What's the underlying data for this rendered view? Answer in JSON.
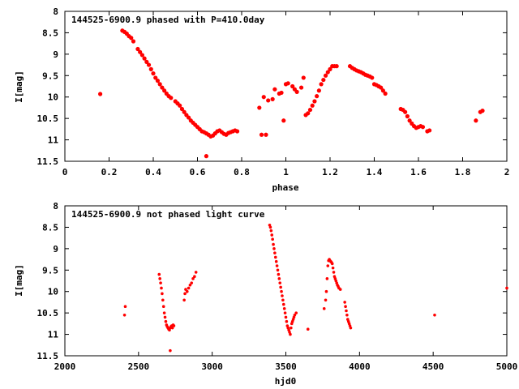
{
  "chart_data": [
    {
      "type": "scatter",
      "title": "144525-6900.9 phased with P=410.0day",
      "xlabel": "phase",
      "ylabel": "I[mag]",
      "xlim": [
        0,
        2
      ],
      "ylim": [
        11.5,
        8
      ],
      "y_inverted": true,
      "grid": false,
      "marker_color": "#ff0000",
      "x_ticks": [
        "0",
        "0.2",
        "0.4",
        "0.6",
        "0.8",
        "1",
        "1.2",
        "1.4",
        "1.6",
        "1.8",
        "2"
      ],
      "y_ticks": [
        "8",
        "8.5",
        "9",
        "9.5",
        "10",
        "10.5",
        "11",
        "11.5"
      ],
      "series": [
        {
          "x": [
            0.16,
            0.26,
            0.27,
            0.28,
            0.29,
            0.3,
            0.31,
            0.33,
            0.34,
            0.35,
            0.36,
            0.37,
            0.38,
            0.39,
            0.4,
            0.41,
            0.42,
            0.43,
            0.44,
            0.45,
            0.46,
            0.47,
            0.48,
            0.5,
            0.51,
            0.52,
            0.53,
            0.54,
            0.55,
            0.56,
            0.57,
            0.58,
            0.59,
            0.6,
            0.61,
            0.62,
            0.63,
            0.64,
            0.65,
            0.66,
            0.67,
            0.68,
            0.69,
            0.7,
            0.71,
            0.72,
            0.73,
            0.74,
            0.75,
            0.76,
            0.77,
            0.78,
            0.64,
            0.88,
            0.89,
            0.9,
            0.91,
            0.92,
            0.94,
            0.95,
            0.97,
            0.98,
            0.99,
            1.0,
            1.01,
            1.03,
            1.04,
            1.05,
            1.07,
            1.08,
            1.09,
            1.1,
            1.11,
            1.12,
            1.13,
            1.14,
            1.15,
            1.16,
            1.17,
            1.18,
            1.19,
            1.2,
            1.21,
            1.22,
            1.23,
            1.29,
            1.3,
            1.31,
            1.32,
            1.33,
            1.34,
            1.35,
            1.36,
            1.37,
            1.38,
            1.39,
            1.4,
            1.41,
            1.42,
            1.43,
            1.44,
            1.45,
            1.52,
            1.53,
            1.54,
            1.55,
            1.56,
            1.57,
            1.58,
            1.59,
            1.6,
            1.61,
            1.62,
            1.64,
            1.65,
            1.86,
            1.88,
            1.89
          ],
          "y": [
            9.93,
            8.45,
            8.48,
            8.52,
            8.58,
            8.62,
            8.7,
            8.88,
            8.95,
            9.02,
            9.1,
            9.18,
            9.25,
            9.35,
            9.45,
            9.55,
            9.62,
            9.7,
            9.78,
            9.85,
            9.92,
            9.98,
            10.02,
            10.1,
            10.15,
            10.2,
            10.28,
            10.35,
            10.42,
            10.48,
            10.55,
            10.6,
            10.65,
            10.7,
            10.75,
            10.8,
            10.82,
            10.85,
            10.88,
            10.92,
            10.9,
            10.85,
            10.8,
            10.78,
            10.82,
            10.86,
            10.88,
            10.84,
            10.82,
            10.8,
            10.78,
            10.8,
            11.38,
            10.25,
            10.88,
            10.0,
            10.88,
            10.08,
            10.05,
            9.82,
            9.92,
            9.9,
            10.55,
            9.7,
            9.68,
            9.75,
            9.82,
            9.88,
            9.78,
            9.55,
            10.42,
            10.38,
            10.3,
            10.2,
            10.1,
            9.98,
            9.85,
            9.7,
            9.6,
            9.5,
            9.42,
            9.35,
            9.28,
            9.28,
            9.28,
            9.28,
            9.32,
            9.35,
            9.38,
            9.4,
            9.42,
            9.45,
            9.48,
            9.5,
            9.52,
            9.55,
            9.7,
            9.72,
            9.75,
            9.78,
            9.85,
            9.92,
            10.28,
            10.3,
            10.35,
            10.45,
            10.55,
            10.62,
            10.68,
            10.72,
            10.7,
            10.68,
            10.7,
            10.8,
            10.78,
            10.55,
            10.35,
            10.32
          ]
        }
      ]
    },
    {
      "type": "scatter",
      "title": "144525-6900.9 not phased light curve",
      "xlabel": "hjd0",
      "ylabel": "I[mag]",
      "xlim": [
        2000,
        5000
      ],
      "ylim": [
        11.5,
        8
      ],
      "y_inverted": true,
      "grid": false,
      "marker_color": "#ff0000",
      "x_ticks": [
        "2000",
        "2500",
        "3000",
        "3500",
        "4000",
        "4500",
        "5000"
      ],
      "y_ticks": [
        "8",
        "8.5",
        "9",
        "9.5",
        "10",
        "10.5",
        "11",
        "11.5"
      ],
      "series": [
        {
          "x": [
            2405,
            2410,
            2640,
            2645,
            2650,
            2655,
            2660,
            2665,
            2670,
            2675,
            2680,
            2685,
            2690,
            2695,
            2700,
            2705,
            2710,
            2715,
            2720,
            2725,
            2730,
            2735,
            2740,
            2715,
            2810,
            2815,
            2820,
            2830,
            2840,
            2850,
            2860,
            2870,
            2880,
            2890,
            3390,
            3395,
            3400,
            3405,
            3410,
            3415,
            3420,
            3425,
            3430,
            3435,
            3440,
            3445,
            3450,
            3455,
            3460,
            3465,
            3470,
            3475,
            3480,
            3485,
            3490,
            3495,
            3500,
            3505,
            3510,
            3515,
            3520,
            3525,
            3530,
            3535,
            3540,
            3545,
            3550,
            3555,
            3560,
            3570,
            3650,
            3760,
            3770,
            3775,
            3780,
            3785,
            3790,
            3795,
            3800,
            3805,
            3810,
            3815,
            3820,
            3825,
            3830,
            3835,
            3840,
            3845,
            3850,
            3855,
            3860,
            3870,
            3900,
            3905,
            3910,
            3915,
            3920,
            3925,
            3930,
            3935,
            3940,
            4510,
            5000
          ],
          "y": [
            10.55,
            10.35,
            9.6,
            9.7,
            9.8,
            9.92,
            10.05,
            10.2,
            10.35,
            10.5,
            10.6,
            10.7,
            10.78,
            10.82,
            10.85,
            10.88,
            10.9,
            10.85,
            10.82,
            10.8,
            10.85,
            10.78,
            10.8,
            11.38,
            10.2,
            10.05,
            9.95,
            10.0,
            9.92,
            9.85,
            9.8,
            9.7,
            9.65,
            9.55,
            8.45,
            8.5,
            8.58,
            8.68,
            8.78,
            8.9,
            9.0,
            9.1,
            9.2,
            9.3,
            9.4,
            9.5,
            9.6,
            9.7,
            9.8,
            9.9,
            10.0,
            10.1,
            10.2,
            10.3,
            10.4,
            10.5,
            10.6,
            10.7,
            10.8,
            10.85,
            10.9,
            10.95,
            11.0,
            10.85,
            10.75,
            10.7,
            10.65,
            10.6,
            10.55,
            10.5,
            10.88,
            10.4,
            10.2,
            10.0,
            9.7,
            9.4,
            9.28,
            9.25,
            9.28,
            9.3,
            9.32,
            9.35,
            9.45,
            9.55,
            9.65,
            9.7,
            9.75,
            9.8,
            9.85,
            9.88,
            9.92,
            9.95,
            10.25,
            10.35,
            10.45,
            10.55,
            10.65,
            10.7,
            10.75,
            10.8,
            10.85,
            10.55,
            9.92
          ]
        }
      ]
    }
  ]
}
